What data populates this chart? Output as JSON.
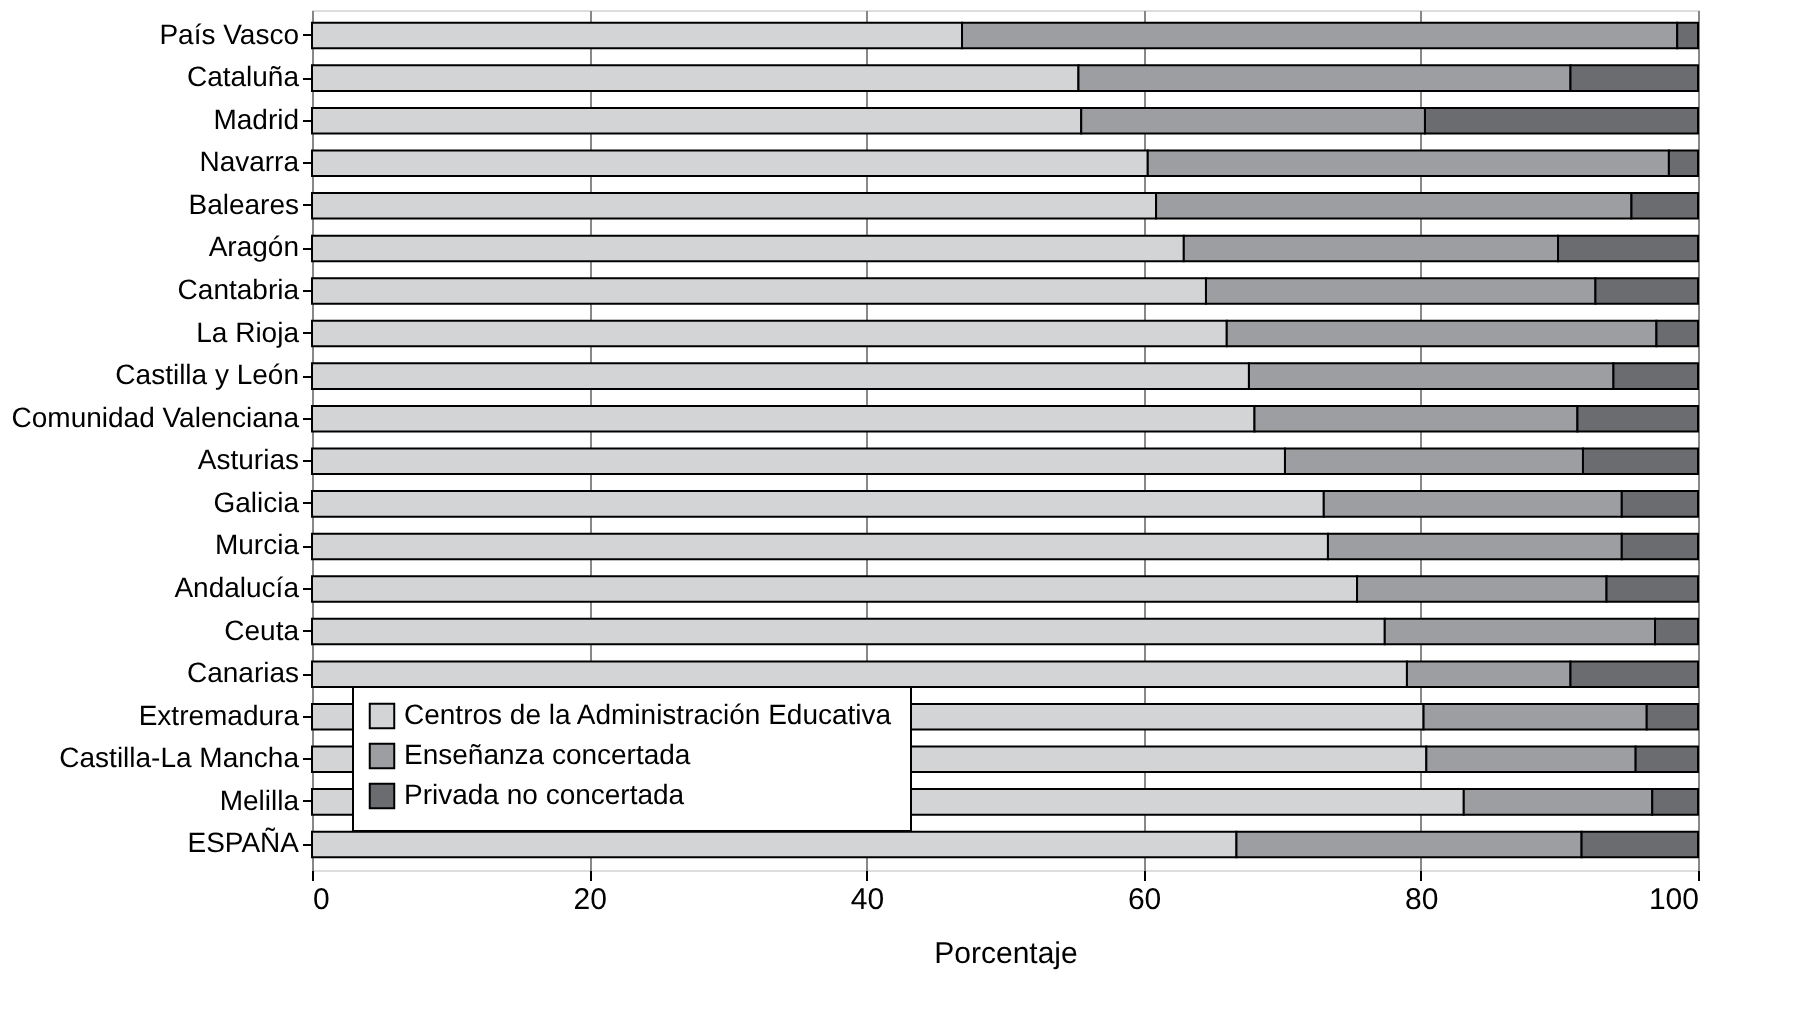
{
  "chart_data": {
    "type": "bar",
    "orientation": "horizontal",
    "stacked": true,
    "xlabel": "Porcentaje",
    "categories": [
      "País Vasco",
      "Cataluña",
      "Madrid",
      "Navarra",
      "Baleares",
      "Aragón",
      "Cantabria",
      "La Rioja",
      "Castilla y León",
      "Comunidad Valenciana",
      "Asturias",
      "Galicia",
      "Murcia",
      "Andalucía",
      "Ceuta",
      "Canarias",
      "Extremadura",
      "Castilla-La Mancha",
      "Melilla",
      "ESPAÑA"
    ],
    "series": [
      {
        "name": "Centros de la Administración Educativa",
        "color": "#d3d4d6",
        "values": [
          46.9,
          55.3,
          55.5,
          60.3,
          60.9,
          62.9,
          64.5,
          66.0,
          67.6,
          68.0,
          70.2,
          73.0,
          73.3,
          75.4,
          77.4,
          79.0,
          80.2,
          80.4,
          83.1,
          66.7
        ]
      },
      {
        "name": "Enseñanza concertada",
        "color": "#9d9ea2",
        "values": [
          51.6,
          35.5,
          24.8,
          37.6,
          34.3,
          27.0,
          28.1,
          31.0,
          26.3,
          23.3,
          21.5,
          21.5,
          21.2,
          18.0,
          19.5,
          11.8,
          16.1,
          15.1,
          13.6,
          24.9
        ]
      },
      {
        "name": "Privada no concertada",
        "color": "#6b6c70",
        "values": [
          1.5,
          9.2,
          19.7,
          2.1,
          4.8,
          10.1,
          7.4,
          3.0,
          6.1,
          8.7,
          8.3,
          5.5,
          5.5,
          6.6,
          3.1,
          9.2,
          3.7,
          4.5,
          3.3,
          8.4
        ]
      }
    ],
    "xlim": [
      0,
      100
    ],
    "xticks": [
      0,
      20,
      40,
      60,
      80,
      100
    ],
    "grid": "x",
    "legend": "bottom left"
  }
}
